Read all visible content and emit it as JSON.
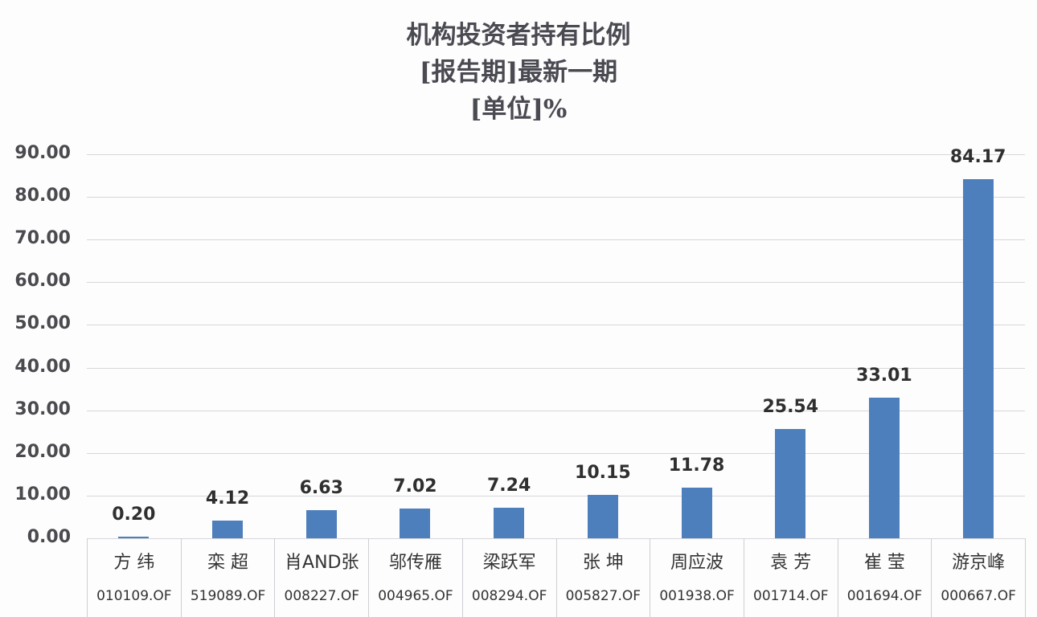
{
  "title": {
    "line1": "机构投资者持有比例",
    "line2": "[报告期]最新一期",
    "line3": "[单位]%"
  },
  "chart_data": {
    "type": "bar",
    "title": "机构投资者持有比例 [报告期]最新一期 [单位]%",
    "xlabel": "",
    "ylabel": "%",
    "ylim": [
      0,
      90
    ],
    "yticks": [
      "0.00",
      "10.00",
      "20.00",
      "30.00",
      "40.00",
      "50.00",
      "60.00",
      "70.00",
      "80.00",
      "90.00"
    ],
    "grid": true,
    "legend": null,
    "categories": [
      "方 纬",
      "栾 超",
      "肖AND张",
      "邬传雁",
      "梁跃军",
      "张 坤",
      "周应波",
      "袁 芳",
      "崔 莹",
      "游京峰"
    ],
    "codes": [
      "010109.OF",
      "519089.OF",
      "008227.OF",
      "004965.OF",
      "008294.OF",
      "005827.OF",
      "001938.OF",
      "001714.OF",
      "001694.OF",
      "000667.OF"
    ],
    "values": [
      0.2,
      4.12,
      6.63,
      7.02,
      7.24,
      10.15,
      11.78,
      25.54,
      33.01,
      84.17
    ],
    "value_labels": [
      "0.20",
      "4.12",
      "6.63",
      "7.02",
      "7.24",
      "10.15",
      "11.78",
      "25.54",
      "33.01",
      "84.17"
    ],
    "bar_color": "#4e7fbd"
  }
}
